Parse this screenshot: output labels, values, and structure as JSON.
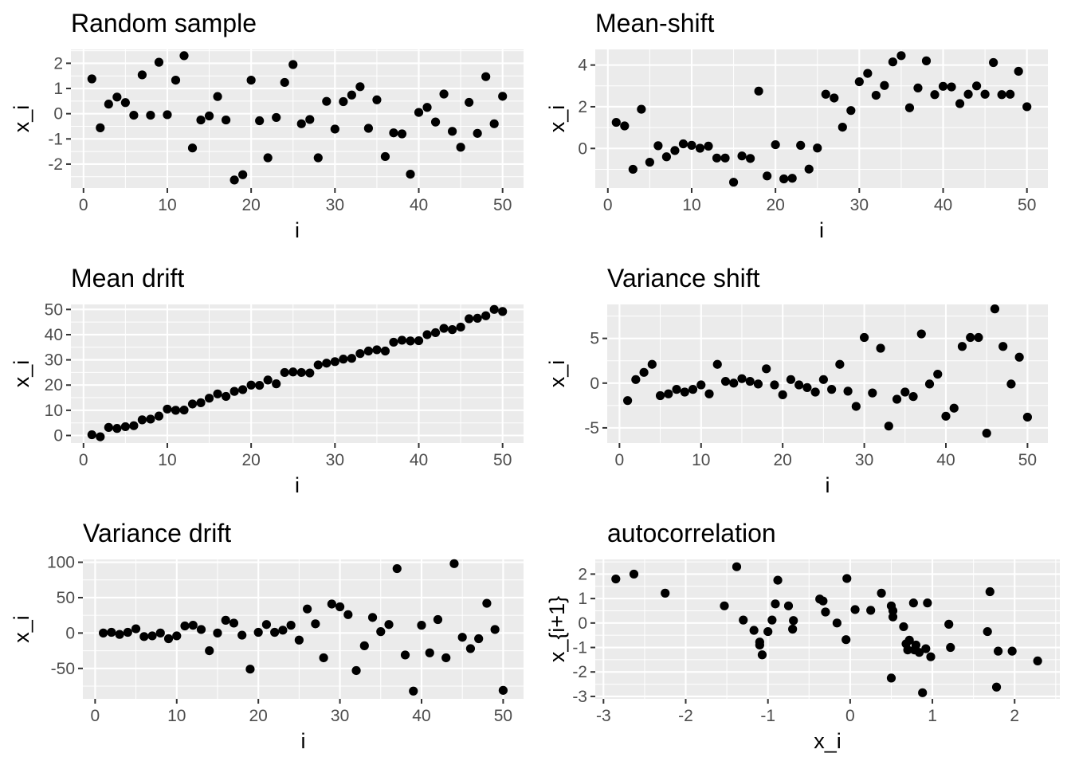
{
  "chart_data": [
    {
      "type": "scatter",
      "title": "Random sample",
      "xlabel": "i",
      "ylabel": "x_i",
      "xlim": [
        -1.5,
        52.5
      ],
      "ylim": [
        -2.95,
        2.55
      ],
      "xticks": [
        0,
        10,
        20,
        30,
        40,
        50
      ],
      "yticks": [
        -2,
        -1,
        0,
        1,
        2
      ],
      "grid": true,
      "x": [
        1,
        2,
        3,
        4,
        5,
        6,
        7,
        8,
        9,
        10,
        11,
        12,
        13,
        14,
        15,
        16,
        17,
        18,
        19,
        20,
        21,
        22,
        23,
        24,
        25,
        26,
        27,
        28,
        29,
        30,
        31,
        32,
        33,
        34,
        35,
        36,
        37,
        38,
        39,
        40,
        41,
        42,
        43,
        44,
        45,
        46,
        47,
        48,
        49,
        50
      ],
      "y": [
        1.38,
        -0.56,
        0.38,
        0.66,
        0.44,
        -0.06,
        1.54,
        -0.06,
        2.04,
        -0.04,
        1.33,
        2.3,
        -1.36,
        -0.25,
        -0.09,
        0.68,
        -0.25,
        -2.63,
        -2.42,
        1.33,
        -0.28,
        -1.75,
        -0.15,
        1.24,
        1.95,
        -0.4,
        -0.23,
        -1.75,
        0.49,
        -0.61,
        0.48,
        0.74,
        1.07,
        -0.58,
        0.55,
        -1.7,
        -0.76,
        -0.8,
        -2.4,
        0.05,
        0.25,
        -0.33,
        0.78,
        -0.7,
        -1.33,
        0.45,
        -0.78,
        1.47,
        -0.4,
        0.69
      ]
    },
    {
      "type": "scatter",
      "title": "Mean-shift",
      "xlabel": "i",
      "ylabel": "x_i",
      "xlim": [
        -1.5,
        52.5
      ],
      "ylim": [
        -1.9,
        4.75
      ],
      "xticks": [
        0,
        10,
        20,
        30,
        40,
        50
      ],
      "yticks": [
        0,
        2,
        4
      ],
      "grid": true,
      "x": [
        1,
        2,
        3,
        4,
        5,
        6,
        7,
        8,
        9,
        10,
        11,
        12,
        13,
        14,
        15,
        16,
        17,
        18,
        19,
        20,
        21,
        22,
        23,
        24,
        25,
        26,
        27,
        28,
        29,
        30,
        31,
        32,
        33,
        34,
        35,
        36,
        37,
        38,
        39,
        40,
        41,
        42,
        43,
        44,
        45,
        46,
        47,
        48,
        49,
        50
      ],
      "y": [
        1.25,
        1.08,
        -1.0,
        1.88,
        -0.66,
        0.13,
        -0.4,
        -0.1,
        0.22,
        0.15,
        0.01,
        0.11,
        -0.46,
        -0.46,
        -1.62,
        -0.36,
        -0.48,
        2.75,
        -1.32,
        0.18,
        -1.46,
        -1.43,
        0.15,
        -0.99,
        0.02,
        2.6,
        2.42,
        1.02,
        1.82,
        3.2,
        3.6,
        2.55,
        3.02,
        4.15,
        4.45,
        1.95,
        2.9,
        4.2,
        2.58,
        2.98,
        2.95,
        2.15,
        2.6,
        3.0,
        2.6,
        4.12,
        2.58,
        2.6,
        3.7,
        2.0
      ]
    },
    {
      "type": "scatter",
      "title": "Mean drift",
      "xlabel": "i",
      "ylabel": "x_i",
      "xlim": [
        -1.5,
        52.5
      ],
      "ylim": [
        -3.0,
        52.0
      ],
      "xticks": [
        0,
        10,
        20,
        30,
        40,
        50
      ],
      "yticks": [
        0,
        10,
        20,
        30,
        40,
        50
      ],
      "grid": true,
      "x": [
        1,
        2,
        3,
        4,
        5,
        6,
        7,
        8,
        9,
        10,
        11,
        12,
        13,
        14,
        15,
        16,
        17,
        18,
        19,
        20,
        21,
        22,
        23,
        24,
        25,
        26,
        27,
        28,
        29,
        30,
        31,
        32,
        33,
        34,
        35,
        36,
        37,
        38,
        39,
        40,
        41,
        42,
        43,
        44,
        45,
        46,
        47,
        48,
        49,
        50
      ],
      "y": [
        0.3,
        -0.5,
        3.2,
        2.8,
        3.5,
        3.9,
        6.2,
        6.5,
        7.7,
        10.5,
        10.0,
        10.1,
        12.5,
        13.0,
        14.8,
        16.5,
        15.5,
        17.5,
        18.2,
        20.0,
        19.9,
        22.0,
        20.5,
        25.0,
        25.2,
        25.0,
        24.8,
        28.0,
        28.7,
        29.3,
        30.3,
        30.6,
        32.5,
        33.5,
        34.0,
        33.5,
        37.0,
        37.8,
        37.5,
        37.6,
        40.0,
        40.8,
        42.5,
        42.0,
        43.0,
        46.3,
        46.5,
        47.5,
        50.0,
        49.2
      ]
    },
    {
      "type": "scatter",
      "title": "Variance shift",
      "xlabel": "i",
      "ylabel": "x_i",
      "xlim": [
        -1.5,
        52.5
      ],
      "ylim": [
        -6.7,
        8.8
      ],
      "xticks": [
        0,
        10,
        20,
        30,
        40,
        50
      ],
      "yticks": [
        -5,
        0,
        5
      ],
      "grid": true,
      "x": [
        1,
        2,
        3,
        4,
        5,
        6,
        7,
        8,
        9,
        10,
        11,
        12,
        13,
        14,
        15,
        16,
        17,
        18,
        19,
        20,
        21,
        22,
        23,
        24,
        25,
        26,
        27,
        28,
        29,
        30,
        31,
        32,
        33,
        34,
        35,
        36,
        37,
        38,
        39,
        40,
        41,
        42,
        43,
        44,
        45,
        46,
        47,
        48,
        49,
        50
      ],
      "y": [
        -1.95,
        0.4,
        1.2,
        2.1,
        -1.4,
        -1.2,
        -0.7,
        -1.0,
        -0.7,
        -0.2,
        -1.2,
        2.1,
        0.2,
        0.0,
        0.5,
        0.2,
        -0.1,
        1.6,
        -0.2,
        -1.3,
        0.4,
        -0.2,
        -0.5,
        -1.0,
        0.4,
        -0.7,
        2.1,
        -0.9,
        -2.6,
        5.1,
        -1.1,
        3.9,
        -4.8,
        -1.8,
        -1.0,
        -1.5,
        5.5,
        -0.1,
        1.0,
        -3.7,
        -2.8,
        4.1,
        5.1,
        5.1,
        -5.6,
        8.3,
        4.1,
        -0.1,
        2.9,
        -3.8
      ]
    },
    {
      "type": "scatter",
      "title": "Variance drift",
      "xlabel": "i",
      "ylabel": "x_i",
      "xlim": [
        -1.5,
        52.5
      ],
      "ylim": [
        -93,
        104
      ],
      "xticks": [
        0,
        10,
        20,
        30,
        40,
        50
      ],
      "yticks": [
        -50,
        0,
        50,
        100
      ],
      "grid": true,
      "x": [
        1,
        2,
        3,
        4,
        5,
        6,
        7,
        8,
        9,
        10,
        11,
        12,
        13,
        14,
        15,
        16,
        17,
        18,
        19,
        20,
        21,
        22,
        23,
        24,
        25,
        26,
        27,
        28,
        29,
        30,
        31,
        32,
        33,
        34,
        35,
        36,
        37,
        38,
        39,
        40,
        41,
        42,
        43,
        44,
        45,
        46,
        47,
        48,
        49,
        50
      ],
      "y": [
        0,
        1,
        -2,
        1,
        6,
        -5,
        -4,
        0,
        -8,
        -4,
        10,
        11,
        5,
        -25,
        0,
        18,
        14,
        -3,
        -51,
        1,
        12,
        1,
        4,
        11,
        -10,
        34,
        13,
        -35,
        41,
        37,
        26,
        -53,
        -18,
        22,
        2,
        12,
        91,
        -31,
        -82,
        11,
        -28,
        19,
        -35,
        98,
        -6,
        -22,
        -8,
        42,
        5,
        -81
      ]
    },
    {
      "type": "scatter",
      "title": "autocorrelation",
      "xlabel": "x_i",
      "ylabel": "x_{i+1}",
      "xlim": [
        -3.1,
        2.55
      ],
      "ylim": [
        -3.1,
        2.6
      ],
      "xticks": [
        -3,
        -2,
        -1,
        0,
        1,
        2
      ],
      "yticks": [
        -3,
        -2,
        -1,
        0,
        1,
        2
      ],
      "grid": true,
      "x": [
        -2.85,
        -2.63,
        -2.25,
        -1.53,
        -1.38,
        -1.3,
        -1.17,
        -1.1,
        -1.1,
        -1.07,
        -1.0,
        -0.95,
        -0.91,
        -0.88,
        -0.75,
        -0.7,
        -0.69,
        -0.37,
        -0.33,
        -0.3,
        -0.16,
        -0.05,
        -0.04,
        0.06,
        0.25,
        0.38,
        0.5,
        0.5,
        0.52,
        0.52,
        0.65,
        0.68,
        0.7,
        0.72,
        0.77,
        0.78,
        0.8,
        0.84,
        0.88,
        0.92,
        0.94,
        1.2,
        1.22,
        1.67,
        1.7,
        1.78,
        1.8,
        1.97,
        2.28,
        0.98
      ],
      "y": [
        1.8,
        2.0,
        1.22,
        0.7,
        2.3,
        0.12,
        -0.3,
        -0.78,
        -0.9,
        -1.3,
        -0.35,
        0.12,
        0.78,
        1.75,
        0.7,
        -0.25,
        0.1,
        0.98,
        0.9,
        0.45,
        0.0,
        -0.68,
        1.82,
        0.55,
        0.52,
        1.22,
        -2.25,
        0.7,
        0.5,
        0.25,
        -0.15,
        -0.85,
        -1.1,
        -0.7,
        0.82,
        -1.1,
        -0.9,
        -1.2,
        -2.85,
        -1.05,
        0.82,
        -0.05,
        -1.0,
        -0.35,
        1.28,
        -2.62,
        -1.15,
        -1.15,
        -1.55,
        -1.38
      ]
    }
  ]
}
